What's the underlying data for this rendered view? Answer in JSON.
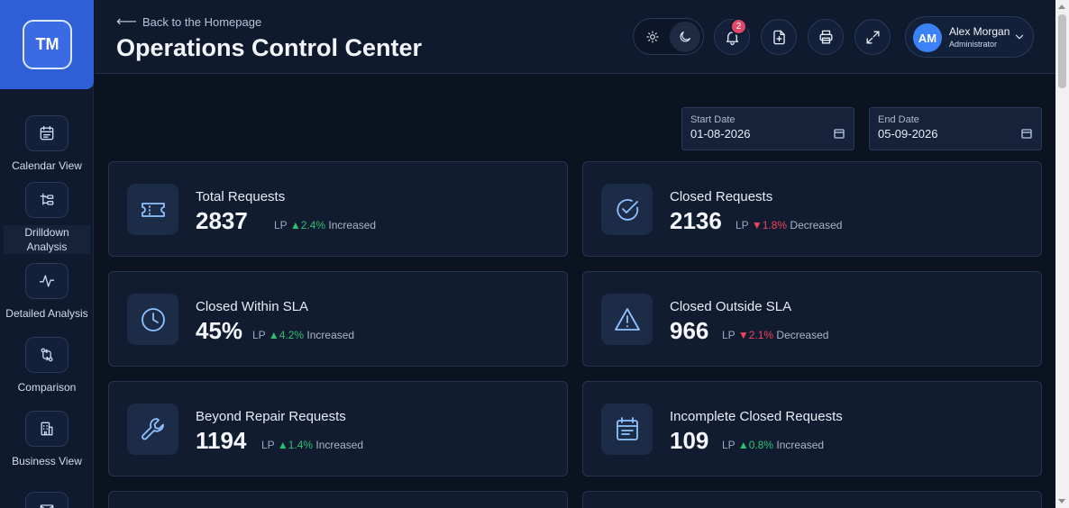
{
  "brand": {
    "initials": "TM"
  },
  "sidebar": {
    "items": [
      {
        "label": "Calendar View",
        "icon": "calendar-icon"
      },
      {
        "label": "Drilldown Analysis",
        "icon": "hierarchy-icon"
      },
      {
        "label": "Detailed Analysis",
        "icon": "pulse-icon"
      },
      {
        "label": "Comparison",
        "icon": "compare-icon"
      },
      {
        "label": "Business View",
        "icon": "building-icon"
      }
    ]
  },
  "header": {
    "back_label": "Back to the Homepage",
    "title": "Operations Control Center",
    "notification_count": "2",
    "user": {
      "initials": "AM",
      "name": "Alex Morgan",
      "role": "Administrator"
    }
  },
  "filters": {
    "start_label": "Start Date",
    "start_value": "01-08-2026",
    "end_label": "End Date",
    "end_value": "05-09-2026"
  },
  "cards": [
    {
      "title": "Total Requests",
      "value": "2837",
      "lp": "LP",
      "arrow": "▲",
      "change": "2.4%",
      "direction": "Increased",
      "icon": "ticket-icon"
    },
    {
      "title": "Closed Requests",
      "value": "2136",
      "lp": "LP",
      "arrow": "▼",
      "change": "1.8%",
      "direction": "Decreased",
      "icon": "check-circle-icon"
    },
    {
      "title": "Closed Within SLA",
      "value": "45%",
      "lp": "LP",
      "arrow": "▲",
      "change": "4.2%",
      "direction": "Increased",
      "icon": "clock-icon"
    },
    {
      "title": "Closed Outside SLA",
      "value": "966",
      "lp": "LP",
      "arrow": "▼",
      "change": "2.1%",
      "direction": "Decreased",
      "icon": "warning-icon"
    },
    {
      "title": "Beyond Repair Requests",
      "value": "1194",
      "lp": "LP",
      "arrow": "▲",
      "change": "1.4%",
      "direction": "Increased",
      "icon": "wrench-icon"
    },
    {
      "title": "Incomplete Closed Requests",
      "value": "109",
      "lp": "LP",
      "arrow": "▲",
      "change": "0.8%",
      "direction": "Increased",
      "icon": "calendar-list-icon"
    }
  ],
  "colors": {
    "accent": "#2f5fd6",
    "up": "#2fbf71",
    "down": "#f0445f",
    "icon": "#8fc2ff"
  }
}
